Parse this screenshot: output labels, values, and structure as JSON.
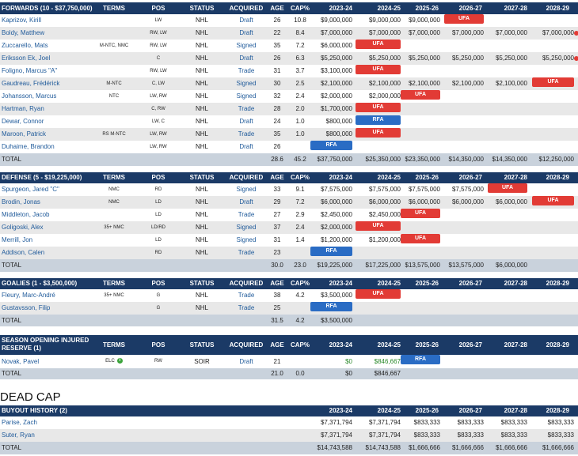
{
  "columns": {
    "terms": "TERMS",
    "pos": "POS",
    "status": "STATUS",
    "acquired": "ACQUIRED",
    "age": "AGE",
    "cap": "CAP%",
    "years": [
      "2023-24",
      "2024-25",
      "2025-26",
      "2026-27",
      "2027-28",
      "2028-29"
    ]
  },
  "sections": [
    {
      "title": "FORWARDS (10 - $37,750,000)",
      "players": [
        {
          "name": "Kaprizov, Kirill",
          "terms": "",
          "pos": "LW",
          "status": "NHL",
          "acq": "Draft",
          "age": "26",
          "cap": "10.8",
          "y": [
            "$9,000,000",
            "$9,000,000",
            "$9,000,000",
            "UFA",
            "",
            ""
          ]
        },
        {
          "name": "Boldy, Matthew",
          "terms": "!",
          "pos": "RW, LW",
          "status": "NHL",
          "acq": "Draft",
          "age": "22",
          "cap": "8.4",
          "y": [
            "$7,000,000",
            "$7,000,000",
            "$7,000,000",
            "$7,000,000",
            "$7,000,000",
            "$7,000,000"
          ]
        },
        {
          "name": "Zuccarello, Mats",
          "terms": "M-NTC, NMC",
          "pos": "RW, LW",
          "status": "NHL",
          "acq": "Signed",
          "age": "35",
          "cap": "7.2",
          "y": [
            "$6,000,000",
            "UFA",
            "",
            "",
            "",
            ""
          ]
        },
        {
          "name": "Eriksson Ek, Joel",
          "terms": "",
          "pos": "C",
          "status": "NHL",
          "acq": "Draft",
          "age": "26",
          "cap": "6.3",
          "y": [
            "$5,250,000",
            "$5,250,000",
            "$5,250,000",
            "$5,250,000",
            "$5,250,000",
            "$5,250,000"
          ]
        },
        {
          "name": "Foligno, Marcus \"A\"",
          "terms": "",
          "pos": "RW, LW",
          "status": "NHL",
          "acq": "Trade",
          "age": "31",
          "cap": "3.7",
          "y": [
            "$3,100,000",
            "UFA",
            "",
            "",
            "",
            ""
          ]
        },
        {
          "name": "Gaudreau, Frédérick",
          "terms": "M-NTC",
          "pos": "C, LW",
          "status": "NHL",
          "acq": "Signed",
          "age": "30",
          "cap": "2.5",
          "y": [
            "$2,100,000",
            "$2,100,000",
            "$2,100,000",
            "$2,100,000",
            "$2,100,000",
            "UFA"
          ]
        },
        {
          "name": "Johansson, Marcus",
          "terms": "NTC",
          "pos": "LW, RW",
          "status": "NHL",
          "acq": "Signed",
          "age": "32",
          "cap": "2.4",
          "y": [
            "$2,000,000",
            "$2,000,000",
            "UFA",
            "",
            "",
            ""
          ]
        },
        {
          "name": "Hartman, Ryan",
          "terms": "",
          "pos": "C, RW",
          "status": "NHL",
          "acq": "Trade",
          "age": "28",
          "cap": "2.0",
          "y": [
            "$1,700,000",
            "UFA",
            "",
            "",
            "",
            ""
          ]
        },
        {
          "name": "Dewar, Connor",
          "terms": "",
          "pos": "LW, C",
          "status": "NHL",
          "acq": "Draft",
          "age": "24",
          "cap": "1.0",
          "y": [
            "$800,000",
            "RFA",
            "",
            "",
            "",
            ""
          ]
        },
        {
          "name": "Maroon, Patrick",
          "terms": "RS M-NTC",
          "pos": "LW, RW",
          "status": "NHL",
          "acq": "Trade",
          "age": "35",
          "cap": "1.0",
          "y": [
            "$800,000",
            "UFA",
            "",
            "",
            "",
            ""
          ]
        },
        {
          "name": "Duhaime, Brandon",
          "terms": "",
          "pos": "LW, RW",
          "status": "NHL",
          "acq": "Draft",
          "age": "26",
          "cap": "",
          "y": [
            "RFA",
            "",
            "",
            "",
            "",
            ""
          ]
        }
      ],
      "total": {
        "label": "TOTAL",
        "age": "28.6",
        "cap": "45.2",
        "y": [
          "$37,750,000",
          "$25,350,000",
          "$23,350,000",
          "$14,350,000",
          "$14,350,000",
          "$12,250,000"
        ]
      }
    },
    {
      "title": "DEFENSE (5 - $19,225,000)",
      "players": [
        {
          "name": "Spurgeon, Jared \"C\"",
          "terms": "NMC",
          "pos": "RD",
          "status": "NHL",
          "acq": "Signed",
          "age": "33",
          "cap": "9.1",
          "y": [
            "$7,575,000",
            "$7,575,000",
            "$7,575,000",
            "$7,575,000",
            "UFA",
            ""
          ]
        },
        {
          "name": "Brodin, Jonas",
          "terms": "NMC",
          "pos": "LD",
          "status": "NHL",
          "acq": "Draft",
          "age": "29",
          "cap": "7.2",
          "y": [
            "$6,000,000",
            "$6,000,000",
            "$6,000,000",
            "$6,000,000",
            "$6,000,000",
            "UFA"
          ]
        },
        {
          "name": "Middleton, Jacob",
          "terms": "",
          "pos": "LD",
          "status": "NHL",
          "acq": "Trade",
          "age": "27",
          "cap": "2.9",
          "y": [
            "$2,450,000",
            "$2,450,000",
            "UFA",
            "",
            "",
            ""
          ]
        },
        {
          "name": "Goligoski, Alex",
          "terms": "35+ NMC",
          "pos": "LD/RD",
          "status": "NHL",
          "acq": "Signed",
          "age": "37",
          "cap": "2.4",
          "y": [
            "$2,000,000",
            "UFA",
            "",
            "",
            "",
            ""
          ]
        },
        {
          "name": "Merrill, Jon",
          "terms": "",
          "pos": "LD",
          "status": "NHL",
          "acq": "Signed",
          "age": "31",
          "cap": "1.4",
          "y": [
            "$1,200,000",
            "$1,200,000",
            "UFA",
            "",
            "",
            ""
          ]
        },
        {
          "name": "Addison, Calen",
          "terms": "",
          "pos": "RD",
          "status": "NHL",
          "acq": "Trade",
          "age": "23",
          "cap": "",
          "y": [
            "RFA",
            "",
            "",
            "",
            "",
            ""
          ]
        }
      ],
      "total": {
        "label": "TOTAL",
        "age": "30.0",
        "cap": "23.0",
        "y": [
          "$19,225,000",
          "$17,225,000",
          "$13,575,000",
          "$13,575,000",
          "$6,000,000",
          ""
        ]
      }
    },
    {
      "title": "GOALIES (1 - $3,500,000)",
      "players": [
        {
          "name": "Fleury, Marc-André",
          "terms": "35+ NMC",
          "pos": "G",
          "status": "NHL",
          "acq": "Trade",
          "age": "38",
          "cap": "4.2",
          "y": [
            "$3,500,000",
            "UFA",
            "",
            "",
            "",
            ""
          ]
        },
        {
          "name": "Gustavsson, Filip",
          "terms": "",
          "pos": "G",
          "status": "NHL",
          "acq": "Trade",
          "age": "25",
          "cap": "",
          "y": [
            "RFA",
            "",
            "",
            "",
            "",
            ""
          ]
        }
      ],
      "total": {
        "label": "TOTAL",
        "age": "31.5",
        "cap": "4.2",
        "y": [
          "$3,500,000",
          "",
          "",
          "",
          "",
          ""
        ]
      }
    },
    {
      "title": "SEASON OPENING INJURED RESERVE (1)",
      "players": [
        {
          "name": "Novak, Pavel",
          "terms": "ELC",
          "pos": "RW",
          "status": "SOIR",
          "acq": "Draft",
          "age": "21",
          "cap": "",
          "y": [
            "$0",
            "$846,667",
            "RFA",
            "",
            "",
            ""
          ]
        }
      ],
      "total": {
        "label": "TOTAL",
        "age": "21.0",
        "cap": "0.0",
        "y": [
          "$0",
          "$846,667",
          "",
          "",
          "",
          ""
        ]
      }
    }
  ],
  "dead_cap": {
    "title": "DEAD CAP",
    "buyout": {
      "title": "BUYOUT HISTORY (2)",
      "rows": [
        {
          "name": "Parise, Zach",
          "y": [
            "$7,371,794",
            "$7,371,794",
            "$833,333",
            "$833,333",
            "$833,333",
            "$833,333"
          ]
        },
        {
          "name": "Suter, Ryan",
          "y": [
            "$7,371,794",
            "$7,371,794",
            "$833,333",
            "$833,333",
            "$833,333",
            "$833,333"
          ]
        }
      ],
      "total": {
        "label": "TOTAL",
        "y": [
          "$14,743,588",
          "$14,743,588",
          "$1,666,666",
          "$1,666,666",
          "$1,666,666",
          "$1,666,666"
        ]
      }
    }
  }
}
